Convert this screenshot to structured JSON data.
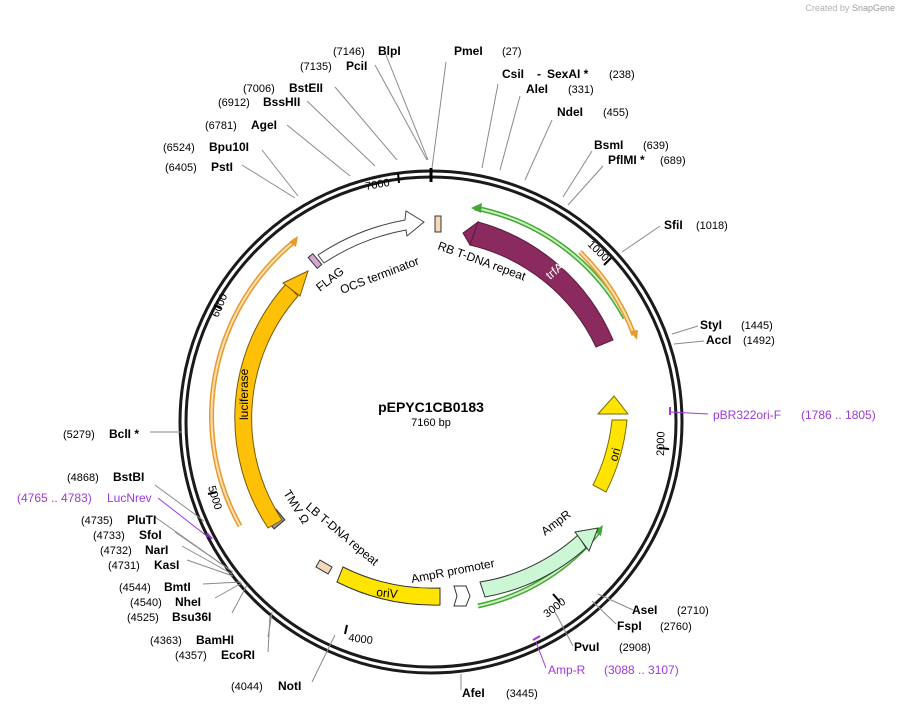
{
  "credit": {
    "prefix": "Created by",
    "brand": "SnapGene"
  },
  "plasmid": {
    "name": "pEPYC1CB0183",
    "size_label": "7160 bp",
    "total_bp": 7160
  },
  "colors": {
    "backbone": "#1a1a1a",
    "trfA": "#8b2a5e",
    "yellow": "#ffe400",
    "orange": "#ffc107",
    "ampr": "#ccf7d4",
    "green_line": "#44a834",
    "orange_line": "#e89a2b",
    "primer": "#9c3ad9",
    "flag": "#d4a6d4",
    "tdna": "#f6d9b8",
    "gray_box": "#9a9a9a"
  },
  "ticks": [
    {
      "bp": 1000,
      "label": "1000"
    },
    {
      "bp": 2000,
      "label": "2000"
    },
    {
      "bp": 3000,
      "label": "3000"
    },
    {
      "bp": 4000,
      "label": "4000"
    },
    {
      "bp": 5000,
      "label": "5000"
    },
    {
      "bp": 6000,
      "label": "6000"
    },
    {
      "bp": 7000,
      "label": "7000"
    }
  ],
  "sites": [
    {
      "name": "PmeI",
      "pos": "(27)",
      "side": "right"
    },
    {
      "name": "CsiI",
      "name2": "SexAI *",
      "pos": "(238)",
      "side": "right"
    },
    {
      "name": "AleI",
      "pos": "(331)",
      "side": "right"
    },
    {
      "name": "NdeI",
      "pos": "(455)",
      "side": "right"
    },
    {
      "name": "BsmI",
      "pos": "(639)",
      "side": "right"
    },
    {
      "name": "PflMI *",
      "pos": "(689)",
      "side": "right"
    },
    {
      "name": "SfiI",
      "pos": "(1018)",
      "side": "right"
    },
    {
      "name": "StyI",
      "pos": "(1445)",
      "side": "right"
    },
    {
      "name": "AccI",
      "pos": "(1492)",
      "side": "right"
    },
    {
      "name": "AseI",
      "pos": "(2710)",
      "side": "right"
    },
    {
      "name": "FspI",
      "pos": "(2760)",
      "side": "right"
    },
    {
      "name": "PvuI",
      "pos": "(2908)",
      "side": "right"
    },
    {
      "name": "AfeI",
      "pos": "(3445)",
      "side": "right"
    },
    {
      "name": "NotI",
      "pos": "(4044)",
      "side": "left"
    },
    {
      "name": "EcoRI",
      "pos": "(4357)",
      "side": "left"
    },
    {
      "name": "BamHI",
      "pos": "(4363)",
      "side": "left"
    },
    {
      "name": "Bsu36I",
      "pos": "(4525)",
      "side": "left"
    },
    {
      "name": "NheI",
      "pos": "(4540)",
      "side": "left"
    },
    {
      "name": "BmtI",
      "pos": "(4544)",
      "side": "left"
    },
    {
      "name": "KasI",
      "pos": "(4731)",
      "side": "left"
    },
    {
      "name": "NarI",
      "pos": "(4732)",
      "side": "left"
    },
    {
      "name": "SfoI",
      "pos": "(4733)",
      "side": "left"
    },
    {
      "name": "PluTI",
      "pos": "(4735)",
      "side": "left"
    },
    {
      "name": "BstBI",
      "pos": "(4868)",
      "side": "left"
    },
    {
      "name": "BclI *",
      "pos": "(5279)",
      "side": "left"
    },
    {
      "name": "PstI",
      "pos": "(6405)",
      "side": "left"
    },
    {
      "name": "Bpu10I",
      "pos": "(6524)",
      "side": "left"
    },
    {
      "name": "AgeI",
      "pos": "(6781)",
      "side": "left"
    },
    {
      "name": "BssHII",
      "pos": "(6912)",
      "side": "left"
    },
    {
      "name": "BstEII",
      "pos": "(7006)",
      "side": "left"
    },
    {
      "name": "PciI",
      "pos": "(7135)",
      "side": "left"
    },
    {
      "name": "BlpI",
      "pos": "(7146)",
      "side": "left"
    }
  ],
  "primers": [
    {
      "name": "pBR322ori-F",
      "range": "(1786 .. 1805)",
      "side": "right"
    },
    {
      "name": "Amp-R",
      "range": "(3088 .. 3107)",
      "side": "right"
    },
    {
      "name": "LucNrev",
      "range": "(4765 .. 4783)",
      "side": "left"
    }
  ],
  "features": [
    {
      "name": "trfA",
      "label": "trfA"
    },
    {
      "name": "ori",
      "label": "ori"
    },
    {
      "name": "AmpR",
      "label": "AmpR"
    },
    {
      "name": "AmpR promoter",
      "label": "AmpR promoter"
    },
    {
      "name": "oriV",
      "label": "oriV"
    },
    {
      "name": "LB T-DNA repeat",
      "label": "LB T-DNA repeat"
    },
    {
      "name": "TMV Omega",
      "label": "TMV Ω"
    },
    {
      "name": "luciferase",
      "label": "luciferase"
    },
    {
      "name": "FLAG",
      "label": "FLAG"
    },
    {
      "name": "OCS terminator",
      "label": "OCS terminator"
    },
    {
      "name": "RB T-DNA repeat",
      "label": "RB T-DNA repeat"
    }
  ]
}
